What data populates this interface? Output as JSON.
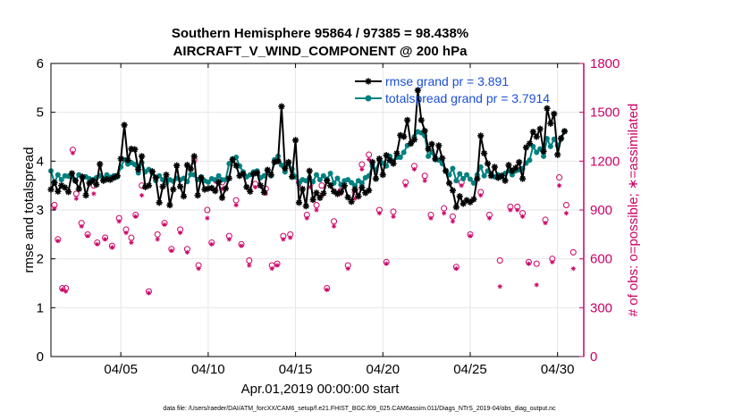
{
  "chart_data": {
    "type": "line",
    "title_line1": "Southern Hemisphere 95864 / 97385 = 98.438%",
    "title_line2": "AIRCRAFT_V_WIND_COMPONENT @ 200 hPa",
    "xlabel": "Apr.01,2019 00:00:00 start",
    "ylabel_left": "rmse and totalspread",
    "ylabel_right": "# of obs: o=possible; ∗=assimilated",
    "footer": "data file: /Users/raeder/DAI/ATM_forcXX/CAM6_setup/f.e21.FHIST_BGC.f09_025.CAM6assim.011/Diags_NTrS_2019-04/obs_diag_output.nc",
    "x_range_days": [
      1,
      31.5
    ],
    "ylim_left": [
      0,
      6
    ],
    "ylim_right": [
      0,
      1800
    ],
    "x_ticks": [
      {
        "day": 5,
        "label": "04/05"
      },
      {
        "day": 10,
        "label": "04/10"
      },
      {
        "day": 15,
        "label": "04/15"
      },
      {
        "day": 20,
        "label": "04/20"
      },
      {
        "day": 25,
        "label": "04/25"
      },
      {
        "day": 30,
        "label": "04/30"
      }
    ],
    "y_ticks_left": [
      "0",
      "1",
      "2",
      "3",
      "4",
      "5",
      "6"
    ],
    "y_ticks_right": [
      "0",
      "300",
      "600",
      "900",
      "1200",
      "1500",
      "1800"
    ],
    "colors": {
      "rmse": "#000000",
      "spread": "#008080",
      "obs": "#cc0066",
      "legend_text": "#1a4fd6"
    },
    "series": [
      {
        "name": "rmse grand pr = 3.891",
        "values": [
          3.42,
          3.56,
          3.38,
          3.5,
          3.46,
          3.37,
          3.75,
          3.6,
          3.43,
          3.68,
          3.3,
          3.55,
          3.6,
          3.52,
          3.94,
          3.6,
          3.63,
          3.62,
          3.66,
          3.7,
          4.05,
          4.74,
          4.02,
          4.25,
          4.24,
          3.83,
          4.1,
          3.47,
          3.5,
          3.79,
          3.66,
          3.15,
          3.48,
          3.72,
          3.1,
          3.42,
          3.91,
          3.48,
          3.28,
          3.92,
          3.84,
          4.1,
          3.3,
          3.66,
          3.42,
          3.44,
          3.45,
          3.39,
          3.57,
          3.25,
          3.44,
          3.65,
          4.03,
          3.91,
          3.7,
          3.74,
          3.47,
          3.38,
          3.74,
          3.76,
          3.5,
          3.36,
          3.82,
          3.72,
          3.98,
          4.0,
          5.12,
          3.85,
          3.98,
          3.68,
          4.43,
          3.15,
          3.43,
          3.08,
          3.8,
          3.21,
          3.35,
          3.25,
          3.34,
          3.6,
          3.5,
          3.38,
          3.33,
          3.37,
          3.5,
          3.26,
          3.17,
          3.42,
          3.28,
          3.46,
          3.35,
          3.4,
          3.98,
          3.64,
          4.05,
          3.72,
          4.12,
          4.02,
          3.95,
          4.16,
          4.53,
          4.5,
          4.84,
          4.36,
          4.44,
          5.45,
          4.84,
          4.62,
          4.25,
          4.35,
          4.05,
          4.32,
          4.06,
          3.8,
          3.55,
          3.4,
          3.06,
          3.28,
          3.13,
          3.2,
          3.16,
          3.22,
          3.64,
          4.52,
          4.16,
          3.95,
          3.7,
          3.88,
          3.66,
          3.7,
          3.6,
          3.92,
          3.8,
          3.86,
          3.98,
          3.64,
          4.28,
          4.36,
          4.6,
          4.5,
          4.66,
          4.2,
          5.08,
          4.77,
          4.97,
          4.13,
          4.47,
          4.61
        ]
      },
      {
        "name": "totalspread grand pr = 3.7914",
        "values": [
          3.8,
          3.56,
          3.72,
          3.62,
          3.7,
          3.69,
          3.68,
          3.6,
          3.72,
          3.66,
          3.68,
          3.64,
          3.62,
          3.66,
          3.7,
          3.65,
          3.72,
          3.67,
          3.7,
          3.68,
          3.88,
          4.03,
          3.94,
          3.97,
          3.93,
          3.76,
          3.97,
          3.78,
          3.83,
          3.76,
          3.6,
          3.7,
          3.62,
          3.55,
          3.62,
          3.59,
          3.65,
          3.62,
          3.65,
          3.58,
          3.73,
          3.72,
          3.62,
          3.68,
          3.6,
          3.57,
          3.64,
          3.62,
          3.7,
          3.62,
          3.62,
          3.95,
          4.05,
          4.08,
          3.9,
          3.78,
          3.68,
          3.72,
          3.78,
          3.8,
          3.66,
          3.7,
          3.8,
          3.7,
          4.03,
          4.1,
          3.92,
          3.78,
          3.95,
          3.84,
          3.68,
          3.55,
          3.62,
          3.6,
          3.66,
          3.58,
          3.72,
          3.62,
          3.7,
          3.63,
          3.75,
          3.55,
          3.65,
          3.52,
          3.6,
          3.62,
          3.56,
          3.5,
          3.6,
          3.55,
          3.66,
          3.7,
          3.9,
          3.82,
          4.02,
          3.96,
          3.9,
          4.1,
          4.0,
          4.08,
          4.08,
          4.18,
          4.32,
          4.36,
          4.5,
          4.6,
          4.58,
          4.52,
          4.1,
          4.18,
          4.03,
          4.02,
          3.95,
          3.8,
          3.72,
          3.85,
          3.6,
          3.74,
          3.64,
          3.72,
          3.63,
          3.55,
          3.72,
          3.88,
          3.7,
          3.8,
          3.75,
          3.68,
          3.72,
          3.68,
          3.75,
          3.8,
          3.72,
          3.8,
          3.82,
          3.85,
          3.96,
          4.02,
          4.3,
          4.18,
          4.25,
          4.1,
          4.46,
          4.3,
          4.45,
          4.32,
          4.45,
          4.62
        ]
      }
    ],
    "obs_possible": [
      [
        1.2,
        930
      ],
      [
        1.4,
        720
      ],
      [
        1.65,
        420
      ],
      [
        1.85,
        420
      ],
      [
        2.25,
        1270
      ],
      [
        2.45,
        1000
      ],
      [
        2.75,
        820
      ],
      [
        3.1,
        750
      ],
      [
        3.45,
        1050
      ],
      [
        3.65,
        700
      ],
      [
        4.1,
        730
      ],
      [
        4.5,
        680
      ],
      [
        4.9,
        850
      ],
      [
        5.3,
        780
      ],
      [
        5.6,
        730
      ],
      [
        5.85,
        870
      ],
      [
        6.2,
        1050
      ],
      [
        6.6,
        400
      ],
      [
        7.1,
        750
      ],
      [
        7.5,
        820
      ],
      [
        7.9,
        660
      ],
      [
        8.4,
        780
      ],
      [
        8.8,
        660
      ],
      [
        9.2,
        1210
      ],
      [
        9.45,
        560
      ],
      [
        9.95,
        900
      ],
      [
        10.2,
        700
      ],
      [
        10.45,
        1080
      ],
      [
        10.8,
        1070
      ],
      [
        11.2,
        740
      ],
      [
        11.6,
        960
      ],
      [
        11.9,
        690
      ],
      [
        12.35,
        590
      ],
      [
        12.7,
        1060
      ],
      [
        13.3,
        1030
      ],
      [
        13.65,
        560
      ],
      [
        13.95,
        570
      ],
      [
        14.3,
        740
      ],
      [
        14.7,
        750
      ],
      [
        15.2,
        1070
      ],
      [
        15.65,
        870
      ],
      [
        15.85,
        1060
      ],
      [
        16.2,
        930
      ],
      [
        16.5,
        1050
      ],
      [
        16.8,
        420
      ],
      [
        17.2,
        830
      ],
      [
        17.6,
        1020
      ],
      [
        18.0,
        560
      ],
      [
        18.4,
        1010
      ],
      [
        18.8,
        1180
      ],
      [
        19.2,
        1240
      ],
      [
        19.8,
        900
      ],
      [
        20.2,
        580
      ],
      [
        20.6,
        890
      ],
      [
        21.3,
        1070
      ],
      [
        21.8,
        1170
      ],
      [
        22.4,
        1110
      ],
      [
        22.75,
        870
      ],
      [
        23.5,
        910
      ],
      [
        24.0,
        860
      ],
      [
        24.2,
        550
      ],
      [
        24.5,
        1070
      ],
      [
        25.0,
        750
      ],
      [
        25.6,
        1010
      ],
      [
        26.1,
        870
      ],
      [
        26.7,
        590
      ],
      [
        27.3,
        920
      ],
      [
        27.7,
        920
      ],
      [
        28.0,
        880
      ],
      [
        28.35,
        580
      ],
      [
        28.8,
        570
      ],
      [
        29.3,
        840
      ],
      [
        29.7,
        600
      ],
      [
        30.1,
        1100
      ],
      [
        30.5,
        930
      ],
      [
        30.9,
        640
      ]
    ],
    "obs_assimilated": [
      [
        1.2,
        910
      ],
      [
        1.4,
        710
      ],
      [
        1.65,
        410
      ],
      [
        1.85,
        400
      ],
      [
        2.25,
        1250
      ],
      [
        2.45,
        970
      ],
      [
        2.75,
        800
      ],
      [
        3.1,
        740
      ],
      [
        3.45,
        1000
      ],
      [
        3.65,
        690
      ],
      [
        4.1,
        720
      ],
      [
        4.5,
        670
      ],
      [
        4.9,
        830
      ],
      [
        5.3,
        760
      ],
      [
        5.6,
        700
      ],
      [
        5.85,
        860
      ],
      [
        6.2,
        990
      ],
      [
        6.6,
        390
      ],
      [
        7.1,
        720
      ],
      [
        7.5,
        810
      ],
      [
        7.9,
        650
      ],
      [
        8.4,
        760
      ],
      [
        8.8,
        640
      ],
      [
        9.2,
        1190
      ],
      [
        9.45,
        540
      ],
      [
        9.95,
        850
      ],
      [
        10.2,
        690
      ],
      [
        10.45,
        1030
      ],
      [
        10.8,
        1030
      ],
      [
        11.2,
        720
      ],
      [
        11.6,
        930
      ],
      [
        11.9,
        680
      ],
      [
        12.35,
        560
      ],
      [
        12.7,
        1040
      ],
      [
        13.3,
        1000
      ],
      [
        13.65,
        540
      ],
      [
        13.95,
        560
      ],
      [
        14.3,
        720
      ],
      [
        14.7,
        730
      ],
      [
        15.2,
        1050
      ],
      [
        15.65,
        850
      ],
      [
        15.85,
        1040
      ],
      [
        16.2,
        900
      ],
      [
        16.5,
        990
      ],
      [
        16.8,
        410
      ],
      [
        17.2,
        800
      ],
      [
        17.6,
        1000
      ],
      [
        18.0,
        540
      ],
      [
        18.4,
        970
      ],
      [
        18.8,
        1150
      ],
      [
        19.2,
        1210
      ],
      [
        19.8,
        880
      ],
      [
        20.2,
        570
      ],
      [
        20.6,
        860
      ],
      [
        21.3,
        1050
      ],
      [
        21.8,
        1150
      ],
      [
        22.4,
        1080
      ],
      [
        22.75,
        850
      ],
      [
        23.5,
        880
      ],
      [
        24.0,
        830
      ],
      [
        24.2,
        540
      ],
      [
        24.5,
        1050
      ],
      [
        25.0,
        740
      ],
      [
        25.6,
        990
      ],
      [
        26.1,
        850
      ],
      [
        26.7,
        430
      ],
      [
        27.3,
        900
      ],
      [
        27.7,
        900
      ],
      [
        28.0,
        860
      ],
      [
        28.35,
        570
      ],
      [
        28.8,
        440
      ],
      [
        29.3,
        820
      ],
      [
        29.7,
        580
      ],
      [
        30.1,
        1050
      ],
      [
        30.5,
        880
      ],
      [
        30.9,
        540
      ]
    ]
  }
}
